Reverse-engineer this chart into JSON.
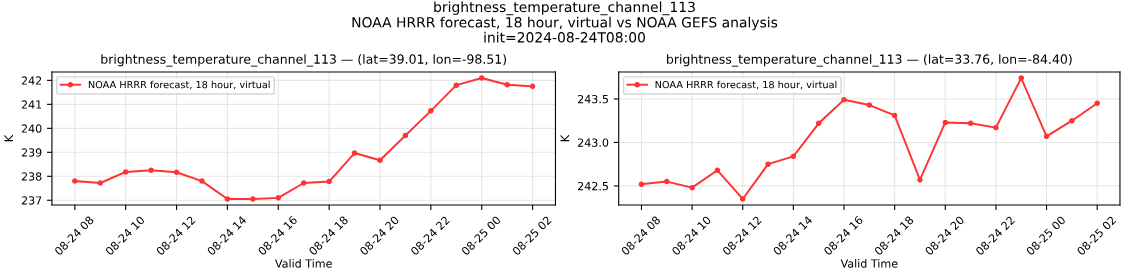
{
  "chart_data": [
    {
      "type": "line",
      "title": "brightness_temperature_channel_113 — (lat=39.01, lon=-98.51)",
      "annotations": [
        "brightness_temperature_channel_113\nNOAA HRRR forecast, 18 hour, virtual vs NOAA GEFS analysis\ninit=2024-08-24T08:00"
      ],
      "xlabel": "Valid Time",
      "ylabel": "K",
      "x": [
        "2024-08-24T08:00",
        "2024-08-24T09:00",
        "2024-08-24T10:00",
        "2024-08-24T11:00",
        "2024-08-24T12:00",
        "2024-08-24T13:00",
        "2024-08-24T14:00",
        "2024-08-24T15:00",
        "2024-08-24T16:00",
        "2024-08-24T17:00",
        "2024-08-24T18:00",
        "2024-08-24T19:00",
        "2024-08-24T20:00",
        "2024-08-24T21:00",
        "2024-08-24T22:00",
        "2024-08-24T23:00",
        "2024-08-25T00:00",
        "2024-08-25T01:00",
        "2024-08-25T02:00"
      ],
      "series": [
        {
          "name": "NOAA HRRR forecast, 18 hour, virtual",
          "color": "#ff3333",
          "values": [
            237.8,
            237.72,
            238.18,
            238.25,
            238.17,
            237.8,
            237.05,
            237.05,
            237.1,
            237.72,
            237.78,
            238.97,
            238.67,
            239.7,
            240.73,
            241.8,
            242.1,
            241.82,
            241.75
          ]
        }
      ],
      "xlim": [
        "2024-08-24T07:06",
        "2024-08-25T02:54"
      ],
      "ylim": [
        236.8,
        242.35
      ],
      "xticks": [
        {
          "value": "2024-08-24T08:00",
          "label": "08-24 08"
        },
        {
          "value": "2024-08-24T10:00",
          "label": "08-24 10"
        },
        {
          "value": "2024-08-24T12:00",
          "label": "08-24 12"
        },
        {
          "value": "2024-08-24T14:00",
          "label": "08-24 14"
        },
        {
          "value": "2024-08-24T16:00",
          "label": "08-24 16"
        },
        {
          "value": "2024-08-24T18:00",
          "label": "08-24 18"
        },
        {
          "value": "2024-08-24T20:00",
          "label": "08-24 20"
        },
        {
          "value": "2024-08-24T22:00",
          "label": "08-24 22"
        },
        {
          "value": "2024-08-25T00:00",
          "label": "08-25 00"
        },
        {
          "value": "2024-08-25T02:00",
          "label": "08-25 02"
        }
      ],
      "yticks": [
        237,
        238,
        239,
        240,
        241,
        242
      ],
      "grid": true,
      "legend": "top left",
      "marker": "circle",
      "line_style": "solid"
    },
    {
      "type": "line",
      "title": "brightness_temperature_channel_113 — (lat=33.76, lon=-84.40)",
      "xlabel": "Valid Time",
      "ylabel": "K",
      "x": [
        "2024-08-24T08:00",
        "2024-08-24T09:00",
        "2024-08-24T10:00",
        "2024-08-24T11:00",
        "2024-08-24T12:00",
        "2024-08-24T13:00",
        "2024-08-24T14:00",
        "2024-08-24T15:00",
        "2024-08-24T16:00",
        "2024-08-24T17:00",
        "2024-08-24T18:00",
        "2024-08-24T19:00",
        "2024-08-24T20:00",
        "2024-08-24T21:00",
        "2024-08-24T22:00",
        "2024-08-24T23:00",
        "2024-08-25T00:00",
        "2024-08-25T01:00",
        "2024-08-25T02:00"
      ],
      "series": [
        {
          "name": "NOAA HRRR forecast, 18 hour, virtual",
          "color": "#ff3333",
          "values": [
            242.52,
            242.55,
            242.48,
            242.68,
            242.35,
            242.75,
            242.84,
            243.22,
            243.49,
            243.43,
            243.31,
            242.57,
            243.23,
            243.22,
            243.17,
            243.74,
            243.07,
            243.25,
            243.45
          ]
        }
      ],
      "xlim": [
        "2024-08-24T07:06",
        "2024-08-25T02:54"
      ],
      "ylim": [
        242.28,
        243.81
      ],
      "xticks": [
        {
          "value": "2024-08-24T08:00",
          "label": "08-24 08"
        },
        {
          "value": "2024-08-24T10:00",
          "label": "08-24 10"
        },
        {
          "value": "2024-08-24T12:00",
          "label": "08-24 12"
        },
        {
          "value": "2024-08-24T14:00",
          "label": "08-24 14"
        },
        {
          "value": "2024-08-24T16:00",
          "label": "08-24 16"
        },
        {
          "value": "2024-08-24T18:00",
          "label": "08-24 18"
        },
        {
          "value": "2024-08-24T20:00",
          "label": "08-24 20"
        },
        {
          "value": "2024-08-24T22:00",
          "label": "08-24 22"
        },
        {
          "value": "2024-08-25T00:00",
          "label": "08-25 00"
        },
        {
          "value": "2024-08-25T02:00",
          "label": "08-25 02"
        }
      ],
      "yticks": [
        {
          "value": 242.5,
          "label": "242.5"
        },
        {
          "value": 243.0,
          "label": "243.0"
        },
        {
          "value": 243.5,
          "label": "243.5"
        }
      ],
      "grid": true,
      "legend": "top left",
      "marker": "circle",
      "line_style": "solid"
    }
  ]
}
